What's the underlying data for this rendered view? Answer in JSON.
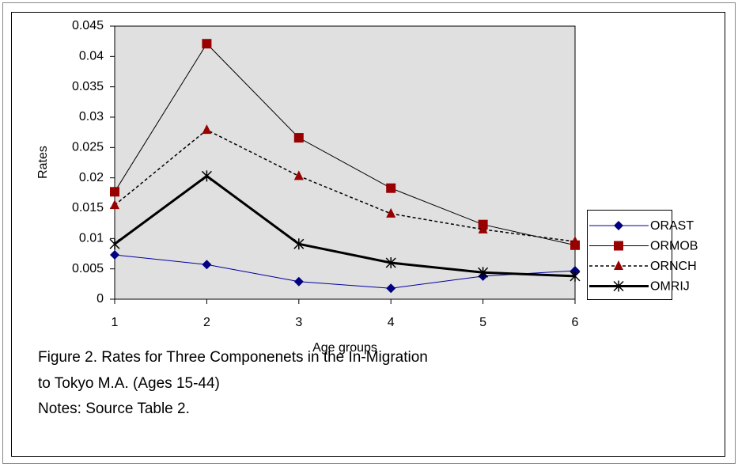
{
  "chart_data": {
    "type": "line",
    "y_label": "Rates",
    "x_label": "Age groups",
    "caption": [
      "Figure 2.  Rates for Three Componenets in the In-Migration",
      "to Tokyo M.A. (Ages 15-44)",
      "Notes: Source Table 2."
    ],
    "x": [
      1,
      2,
      3,
      4,
      5,
      6
    ],
    "xlim": [
      1,
      6
    ],
    "xticks": [
      1,
      2,
      3,
      4,
      5,
      6
    ],
    "ylim": [
      0,
      0.045
    ],
    "yticks": [
      0,
      0.005,
      0.01,
      0.015,
      0.02,
      0.025,
      0.03,
      0.035,
      0.04,
      0.045
    ],
    "grid": false,
    "legend": "right",
    "series": [
      {
        "name": "ORAST",
        "color": "#0000a0",
        "marker": "diamond",
        "marker_color": "#000080",
        "style": "solid",
        "width": 1,
        "values": [
          0.0073,
          0.0057,
          0.0029,
          0.0018,
          0.0038,
          0.0047
        ]
      },
      {
        "name": "ORMOB",
        "color": "#000000",
        "marker": "square",
        "marker_color": "#990000",
        "style": "solid",
        "width": 1,
        "values": [
          0.0177,
          0.0421,
          0.0266,
          0.0183,
          0.0123,
          0.0089
        ]
      },
      {
        "name": "ORNCH",
        "color": "#000000",
        "marker": "triangle",
        "marker_color": "#990000",
        "style": "dashed",
        "width": 1.5,
        "values": [
          0.0155,
          0.0279,
          0.0203,
          0.0141,
          0.0115,
          0.0095
        ]
      },
      {
        "name": "OMRIJ",
        "color": "#000000",
        "marker": "asterisk",
        "marker_color": "#000000",
        "style": "solid",
        "width": 3,
        "values": [
          0.0091,
          0.0203,
          0.0091,
          0.006,
          0.0044,
          0.0038
        ]
      }
    ]
  }
}
